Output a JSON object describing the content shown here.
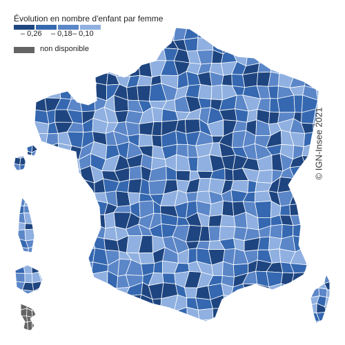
{
  "legend": {
    "title": "Évolution en nombre d'enfant par femme",
    "classes": [
      "#1e4580",
      "#3568b0",
      "#5b86c8",
      "#8fb0e0"
    ],
    "tick_labels": [
      "– 0,26",
      "– 0,18",
      "– 0,10"
    ],
    "na_label": "non disponible",
    "na_color": "#646464"
  },
  "credit": "© IGN-Insee 2021",
  "colors": {
    "border": "#ffffff",
    "background": "#ffffff"
  }
}
